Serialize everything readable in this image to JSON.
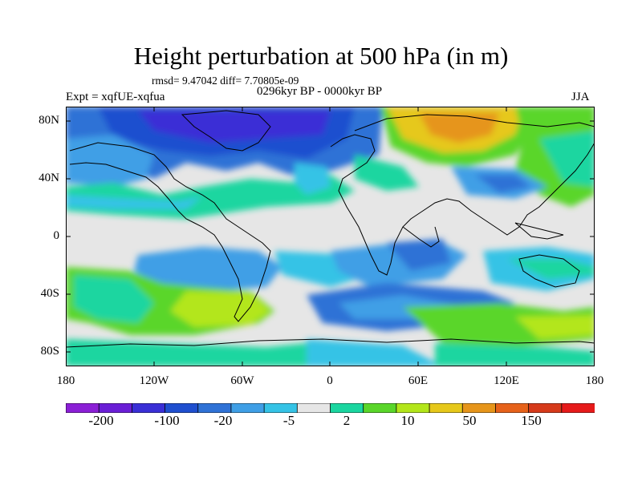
{
  "title": "Height perturbation at 500 hPa (in m)",
  "stats_text": "rmsd= 9.47042 diff= 7.70805e-09",
  "period_text": "0296kyr BP - 0000kyr BP",
  "experiment_text": "Expt = xqfUE-xqfua",
  "season_text": "JJA",
  "map": {
    "projection": "cylindrical-equidistant",
    "lon_range": [
      -180,
      180
    ],
    "lat_range": [
      -90,
      90
    ],
    "lat_tick_labels": [
      "80N",
      "40N",
      "0",
      "40S",
      "80S"
    ],
    "lon_tick_labels": [
      "180",
      "120W",
      "60W",
      "0",
      "60E",
      "120E",
      "180"
    ],
    "coastlines": true
  },
  "colorbar": {
    "labels": [
      "-200",
      "-100",
      "-20",
      "-5",
      "2",
      "10",
      "50",
      "150"
    ],
    "colors": [
      "#8b1fd6",
      "#6a1ed6",
      "#3a2fd6",
      "#1f4fcf",
      "#2f72d6",
      "#3f9fe6",
      "#35c3e6",
      "#e6e6e6",
      "#1ad6a0",
      "#5ad62a",
      "#b3e61a",
      "#e6c81a",
      "#e6951a",
      "#e6621a",
      "#d63a1a",
      "#e61a1a"
    ]
  }
}
